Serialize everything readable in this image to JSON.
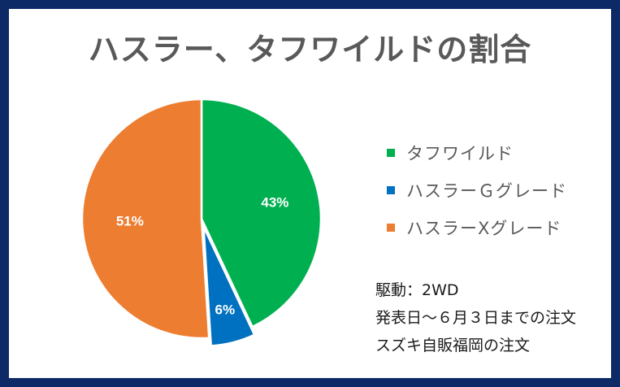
{
  "chart_data": {
    "type": "pie",
    "title": "ハスラー、タフワイルドの割合",
    "slices": [
      {
        "label": "タフワイルド",
        "value": 43,
        "display": "43%",
        "color": "#00b050"
      },
      {
        "label": "ハスラーＧグレード",
        "value": 6,
        "display": "6%",
        "color": "#0070c0"
      },
      {
        "label": "ハスラーXグレード",
        "value": 51,
        "display": "51%",
        "color": "#ed7d31"
      }
    ],
    "legend_position": "right",
    "label_color": "#ffffff"
  },
  "notes": [
    "駆動：2WD",
    "発表日～６月３日までの注文",
    "スズキ自販福岡の注文"
  ],
  "colors": {
    "frame": "#0d2a66",
    "title_text": "#595959"
  }
}
